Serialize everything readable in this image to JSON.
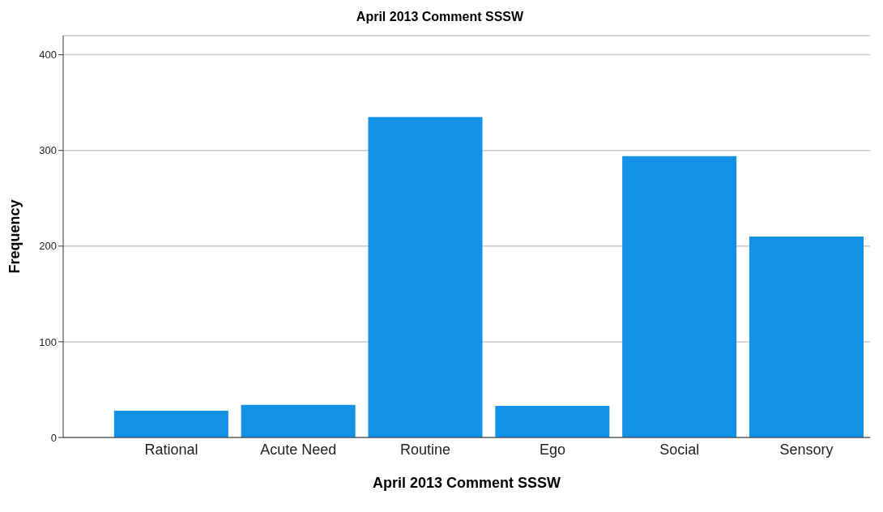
{
  "chart_data": {
    "type": "bar",
    "title": "April 2013 Comment SSSW",
    "xlabel": "April 2013 Comment SSSW",
    "ylabel": "Frequency",
    "categories": [
      "Rational",
      "Acute Need",
      "Routine",
      "Ego",
      "Social",
      "Sensory"
    ],
    "values": [
      28,
      34,
      335,
      33,
      294,
      210
    ],
    "color": "#1391e6",
    "ylim": [
      0,
      420
    ],
    "yticks": [
      0,
      100,
      200,
      300,
      400
    ],
    "grid": "y"
  }
}
